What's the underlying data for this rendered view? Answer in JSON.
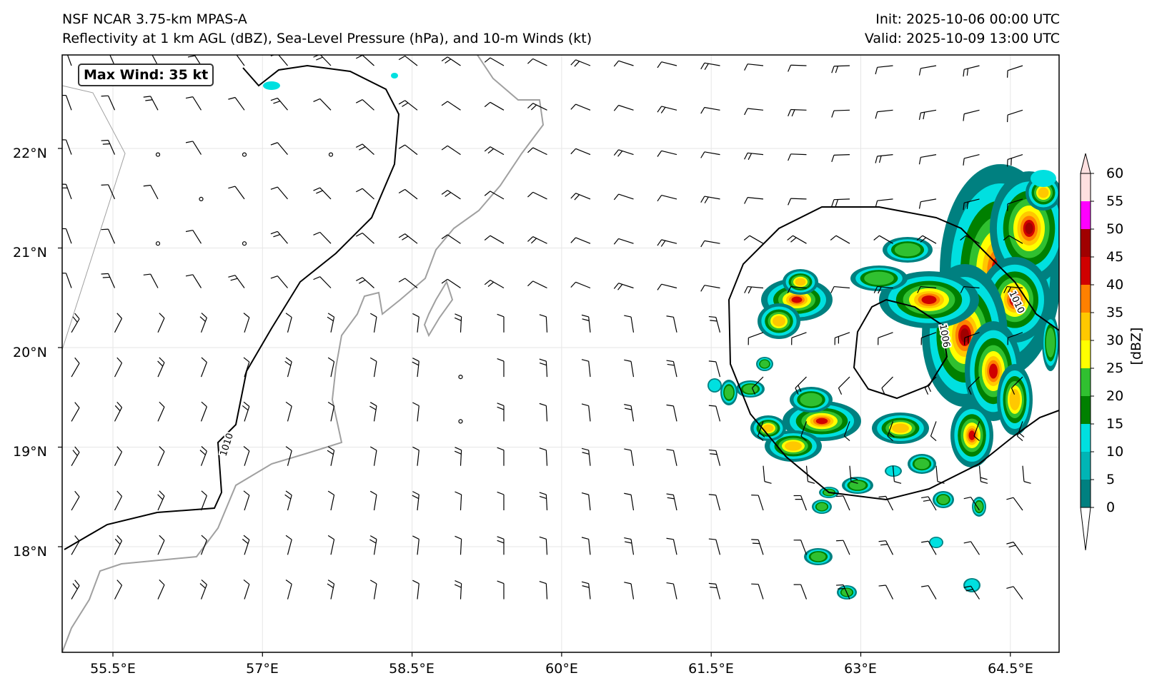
{
  "header": {
    "model": "NSF NCAR 3.75-km MPAS-A",
    "fields": "Reflectivity at 1 km AGL (dBZ), Sea-Level Pressure (hPa), and 10-m Winds (kt)",
    "init": "Init: 2025-10-06 00:00 UTC",
    "valid": "Valid: 2025-10-09 13:00 UTC"
  },
  "annotation": {
    "max_wind": "Max Wind: 35 kt"
  },
  "axes": {
    "lon_labels": [
      "55.5°E",
      "57°E",
      "58.5°E",
      "60°E",
      "61.5°E",
      "63°E",
      "64.5°E"
    ],
    "lat_labels": [
      "22°N",
      "21°N",
      "20°N",
      "19°N",
      "18°N"
    ],
    "lon_values": [
      55.5,
      57,
      58.5,
      60,
      61.5,
      63,
      64.5
    ],
    "lat_values": [
      22,
      21,
      20,
      19,
      18
    ],
    "lon_range": [
      55.0,
      65.0
    ],
    "lat_range": [
      17.0,
      23.0
    ],
    "grid": true
  },
  "colorbar": {
    "title": "[dBZ]",
    "ticks": [
      "0",
      "5",
      "10",
      "15",
      "20",
      "25",
      "30",
      "35",
      "40",
      "45",
      "50",
      "55",
      "60"
    ],
    "colors": [
      "#008080",
      "#00b5b5",
      "#00e0e0",
      "#008000",
      "#30c030",
      "#ffff00",
      "#ffc800",
      "#ff8000",
      "#d00000",
      "#a00000",
      "#ff00ff",
      "#ffe0e0"
    ],
    "extend": "both"
  },
  "contours": {
    "isobars": [
      {
        "label": "1010",
        "value": 1010
      },
      {
        "label": "1010",
        "value": 1010
      },
      {
        "label": "1006",
        "value": 1006
      }
    ]
  },
  "colors": {
    "coastline": "#a0a0a0",
    "isobar": "#000000",
    "grid": "#e6e6e6"
  }
}
